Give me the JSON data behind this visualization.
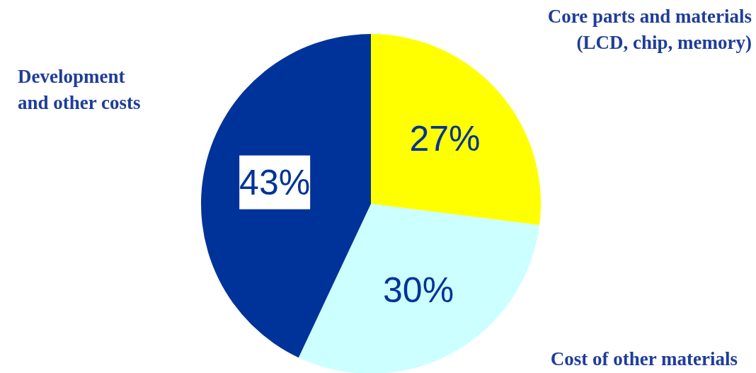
{
  "chart_data": {
    "type": "pie",
    "categories": [
      "Core parts and materials\n(LCD, chip, memory)",
      "Cost of other materials",
      "Development\nand other costs"
    ],
    "values": [
      27,
      30,
      43
    ],
    "value_labels": [
      "27%",
      "30%",
      "43%"
    ],
    "colors": [
      "#ffff00",
      "#ccffff",
      "#003399"
    ]
  }
}
